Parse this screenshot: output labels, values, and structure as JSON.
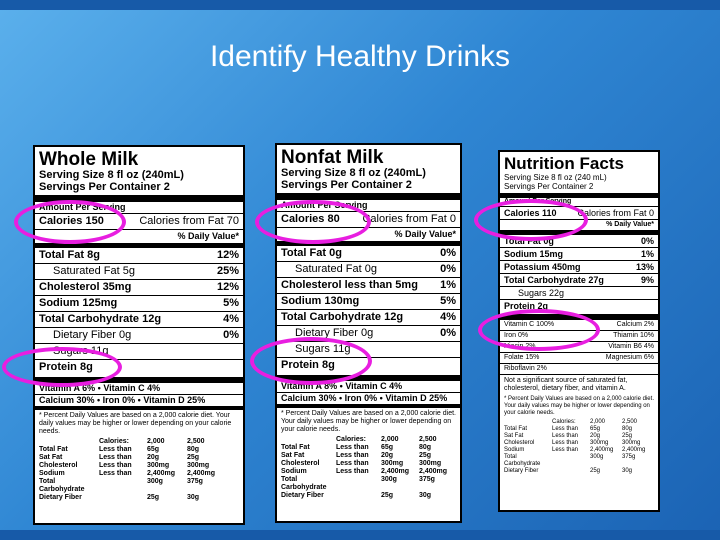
{
  "slide": {
    "title": "Identify Healthy Drinks"
  },
  "colors": {
    "background": "#2f86d3",
    "highlight": "#e81ee0"
  },
  "whole_milk": {
    "name": "Whole Milk",
    "serving_size": "Serving Size 8 fl oz (240mL)",
    "servings": "Servings Per Container 2",
    "amount_per_serving": "Amount Per Serving",
    "calories": "Calories 150",
    "calories_fat": "Calories from Fat 70",
    "daily_value_hdr": "% Daily Value*",
    "rows": [
      {
        "label": "Total Fat 8g",
        "dv": "12%"
      },
      {
        "label": "Saturated Fat 5g",
        "dv": "25%"
      },
      {
        "label": "Cholesterol 35mg",
        "dv": "12%"
      },
      {
        "label": "Sodium 125mg",
        "dv": "5%"
      },
      {
        "label": "Total Carbohydrate 12g",
        "dv": "4%"
      },
      {
        "label": "Dietary Fiber 0g",
        "dv": "0%"
      },
      {
        "label": "Sugars 11g",
        "dv": ""
      },
      {
        "label": "Protein 8g",
        "dv": ""
      }
    ],
    "vit1": "Vitamin A 6%   •   Vitamin C 4%",
    "vit2": "Calcium 30% • Iron 0% • Vitamin D 25%",
    "footnote": "* Percent Daily Values are based on a 2,000 calorie diet. Your daily values may be higher or lower depending on your calorie needs.",
    "table": [
      [
        "",
        "Calories:",
        "2,000",
        "2,500"
      ],
      [
        "Total Fat",
        "Less than",
        "65g",
        "80g"
      ],
      [
        "Sat Fat",
        "Less than",
        "20g",
        "25g"
      ],
      [
        "Cholesterol",
        "Less than",
        "300mg",
        "300mg"
      ],
      [
        "Sodium",
        "Less than",
        "2,400mg",
        "2,400mg"
      ],
      [
        "Total Carbohydrate",
        "",
        "300g",
        "375g"
      ],
      [
        "Dietary Fiber",
        "",
        "25g",
        "30g"
      ]
    ]
  },
  "nonfat_milk": {
    "name": "Nonfat Milk",
    "serving_size": "Serving Size 8 fl oz (240mL)",
    "servings": "Servings Per Container 2",
    "amount_per_serving": "Amount Per Serving",
    "calories": "Calories 80",
    "calories_fat": "Calories from Fat 0",
    "daily_value_hdr": "% Daily Value*",
    "rows": [
      {
        "label": "Total Fat 0g",
        "dv": "0%"
      },
      {
        "label": "Saturated Fat 0g",
        "dv": "0%"
      },
      {
        "label": "Cholesterol less than 5mg",
        "dv": "1%"
      },
      {
        "label": "Sodium 130mg",
        "dv": "5%"
      },
      {
        "label": "Total Carbohydrate 12g",
        "dv": "4%"
      },
      {
        "label": "Dietary Fiber 0g",
        "dv": "0%"
      },
      {
        "label": "Sugars 11g",
        "dv": ""
      },
      {
        "label": "Protein 8g",
        "dv": ""
      }
    ],
    "vit1": "Vitamin A 8%   •   Vitamin C 4%",
    "vit2": "Calcium 30% • Iron 0% • Vitamin D 25%",
    "footnote": "* Percent Daily Values are based on a 2,000 calorie diet. Your daily values may be higher or lower depending on your calorie needs.",
    "table": [
      [
        "",
        "Calories:",
        "2,000",
        "2,500"
      ],
      [
        "Total Fat",
        "Less than",
        "65g",
        "80g"
      ],
      [
        "Sat Fat",
        "Less than",
        "20g",
        "25g"
      ],
      [
        "Cholesterol",
        "Less than",
        "300mg",
        "300mg"
      ],
      [
        "Sodium",
        "Less than",
        "2,400mg",
        "2,400mg"
      ],
      [
        "Total Carbohydrate",
        "",
        "300g",
        "375g"
      ],
      [
        "Dietary Fiber",
        "",
        "25g",
        "30g"
      ]
    ]
  },
  "nutrition_facts": {
    "name": "Nutrition Facts",
    "serving_size": "Serving Size 8 fl oz (240 mL)",
    "servings": "Servings Per Container 2",
    "amount_per_serving": "Amount Per Serving",
    "calories": "Calories 110",
    "calories_fat": "Calories from Fat 0",
    "daily_value_hdr": "% Daily Value*",
    "rows": [
      {
        "label": "Total Fat 0g",
        "dv": "0%"
      },
      {
        "label": "Sodium 15mg",
        "dv": "1%"
      },
      {
        "label": "Potassium 450mg",
        "dv": "13%"
      },
      {
        "label": "Total Carbohydrate 27g",
        "dv": "9%"
      },
      {
        "label": "Sugars 22g",
        "dv": ""
      },
      {
        "label": "Protein 2g",
        "dv": ""
      }
    ],
    "vitamins": [
      [
        "Vitamin C 100%",
        "Calcium 2%"
      ],
      [
        "Iron 0%",
        "Thiamin 10%"
      ],
      [
        "Niacin 2%",
        "Vitamin B6 4%"
      ],
      [
        "Folate 15%",
        "Magnesium 6%"
      ],
      [
        "Riboflavin 2%",
        ""
      ]
    ],
    "note": "Not a significant source of saturated fat, cholesterol, dietary fiber, and vitamin A.",
    "footnote": "* Percent Daily Values are based on a 2,000 calorie diet. Your daily values may be higher or lower depending on your calorie needs.",
    "table": [
      [
        "",
        "Calories:",
        "2,000",
        "2,500"
      ],
      [
        "Total Fat",
        "Less than",
        "65g",
        "80g"
      ],
      [
        "Sat Fat",
        "Less than",
        "20g",
        "25g"
      ],
      [
        "Cholesterol",
        "Less than",
        "300mg",
        "300mg"
      ],
      [
        "Sodium",
        "Less than",
        "2,400mg",
        "2,400mg"
      ],
      [
        "Total Carbohydrate",
        "",
        "300g",
        "375g"
      ],
      [
        "Dietary Fiber",
        "",
        "25g",
        "30g"
      ]
    ]
  }
}
